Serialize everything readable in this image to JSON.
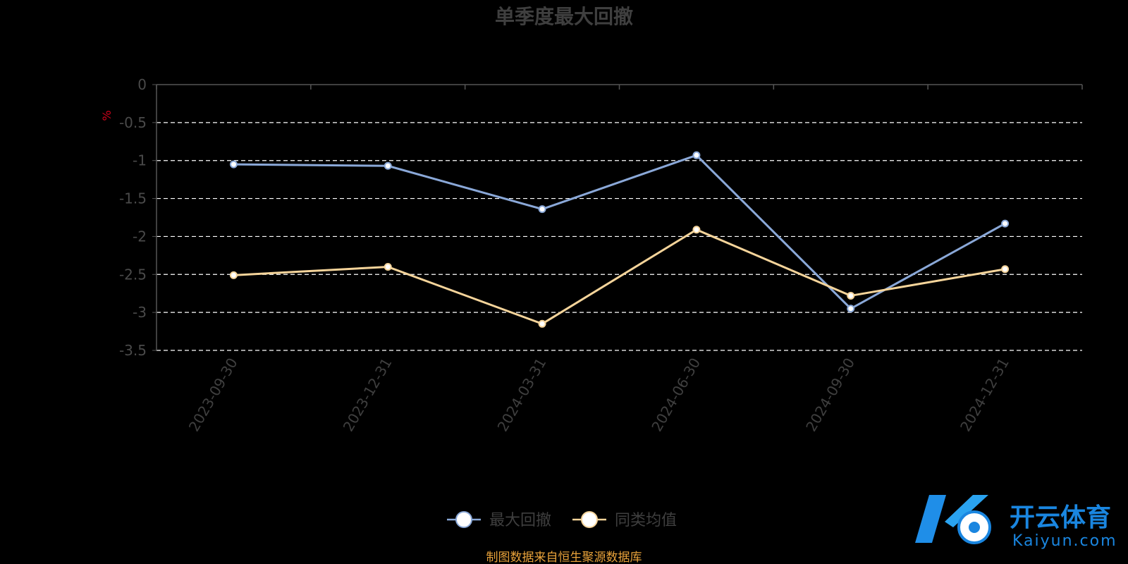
{
  "chart_data": {
    "type": "line",
    "title": "单季度最大回撤",
    "y_unit": "%",
    "categories": [
      "2023-09-30",
      "2023-12-31",
      "2024-03-31",
      "2024-06-30",
      "2024-09-30",
      "2024-12-31"
    ],
    "series": [
      {
        "name": "最大回撤",
        "color": "#8aa8d8",
        "values": [
          -1.05,
          -1.07,
          -1.64,
          -0.93,
          -2.95,
          -1.83
        ]
      },
      {
        "name": "同类均值",
        "color": "#f5d49a",
        "values": [
          -2.51,
          -2.4,
          -3.15,
          -1.91,
          -2.78,
          -2.43
        ]
      }
    ],
    "ylim": [
      -3.5,
      0
    ],
    "yticks": [
      0,
      -0.5,
      -1,
      -1.5,
      -2,
      -2.5,
      -3,
      -3.5
    ],
    "ytick_labels": [
      "0",
      "-0.5",
      "-1",
      "-1.5",
      "-2",
      "-2.5",
      "-3",
      "-3.5"
    ],
    "grid": true,
    "legend_position": "bottom-center"
  },
  "source_text": "制图数据来自恒生聚源数据库",
  "watermark": {
    "cn": "开云体育",
    "en": "Kaiyun.com"
  },
  "colors": {
    "background": "#000000",
    "axis": "#555555",
    "grid": "#ffffff"
  }
}
